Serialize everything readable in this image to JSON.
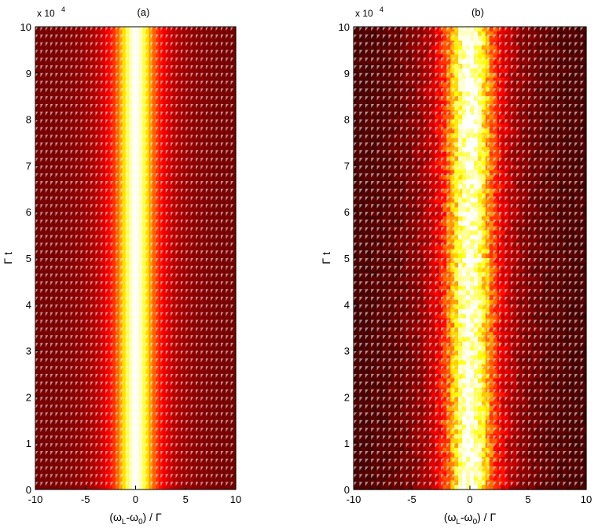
{
  "chart_data": [
    {
      "type": "heatmap",
      "panel_label": "(a)",
      "x_multiplier_label": "x 10",
      "x_multiplier_exp": "4",
      "xlabel_parts": [
        "(ω",
        "L",
        "-ω",
        "0",
        ") / Γ"
      ],
      "ylabel": "Γ t",
      "xlim": [
        -10,
        10
      ],
      "ylim": [
        0,
        10
      ],
      "x_ticks": [
        -10,
        -5,
        0,
        5,
        10
      ],
      "y_ticks": [
        0,
        1,
        2,
        3,
        4,
        5,
        6,
        7,
        8,
        9,
        10
      ],
      "colormap": "hot",
      "profile": "smooth",
      "center": 0,
      "half_width": 1.6,
      "noise": 0.0,
      "background_level": 0.15
    },
    {
      "type": "heatmap",
      "panel_label": "(b)",
      "x_multiplier_label": "x 10",
      "x_multiplier_exp": "4",
      "xlabel_parts": [
        "(ω",
        "L",
        "-ω",
        "0",
        ") / Γ"
      ],
      "ylabel": "Γ t",
      "xlim": [
        -10,
        10
      ],
      "ylim": [
        0,
        10
      ],
      "x_ticks": [
        -10,
        -5,
        0,
        5,
        10
      ],
      "y_ticks": [
        0,
        1,
        2,
        3,
        4,
        5,
        6,
        7,
        8,
        9,
        10
      ],
      "colormap": "hot",
      "profile": "noisy",
      "center": 0,
      "half_width": 1.8,
      "noise": 0.35,
      "background_level": 0.08
    }
  ]
}
